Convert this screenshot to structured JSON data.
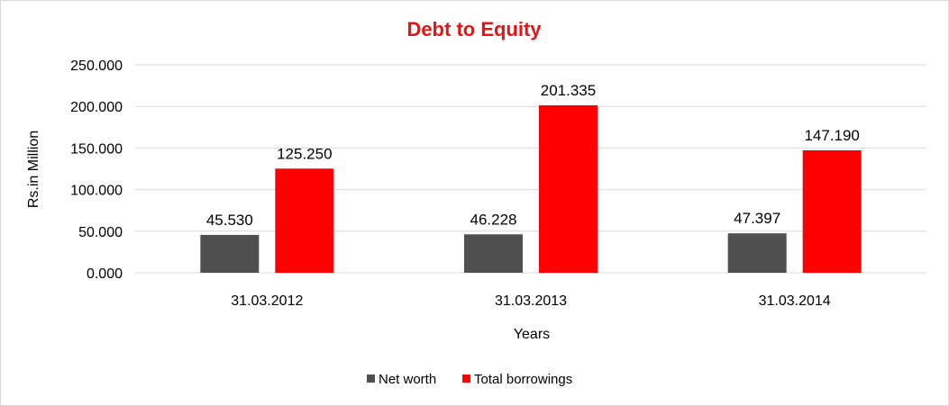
{
  "chart_data": {
    "type": "bar",
    "title": "Debt to Equity",
    "xlabel": "Years",
    "ylabel": "Rs.in Million",
    "categories": [
      "31.03.2012",
      "31.03.2013",
      "31.03.2014"
    ],
    "series": [
      {
        "name": "Net worth",
        "color": "#505050",
        "values": [
          45.53,
          46.228,
          47.397
        ],
        "labels": [
          "45.530",
          "46.228",
          "47.397"
        ]
      },
      {
        "name": "Total borrowings",
        "color": "#ff0000",
        "values": [
          125.25,
          201.335,
          147.19
        ],
        "labels": [
          "125.250",
          "201.335",
          "147.190"
        ]
      }
    ],
    "ylim": [
      0,
      250
    ],
    "yticks": [
      "0.000",
      "50.000",
      "100.000",
      "150.000",
      "200.000",
      "250.000"
    ],
    "ytick_values": [
      0,
      50,
      100,
      150,
      200,
      250
    ],
    "grid": true,
    "legend_position": "bottom",
    "title_color": "#ee1111"
  }
}
